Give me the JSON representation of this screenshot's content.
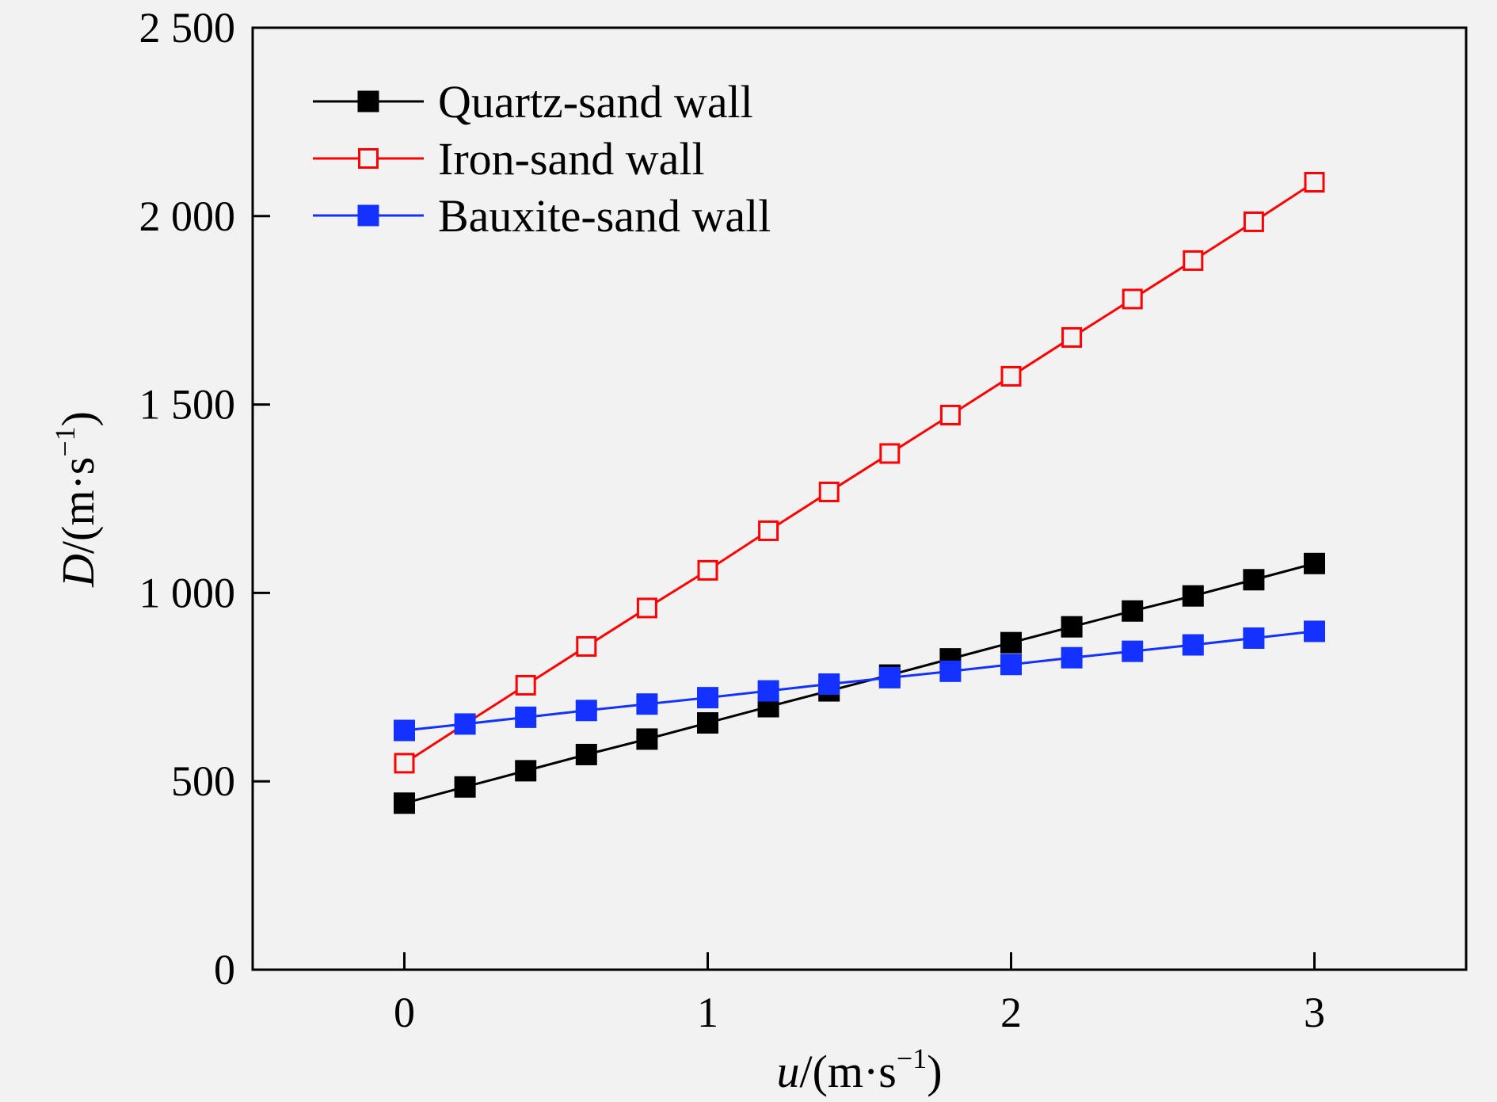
{
  "chart_data": {
    "type": "line",
    "xlabel_var": "u",
    "xlabel_unit": "/(m·s",
    "xlabel_exp": "−1",
    "xlabel_close": ")",
    "ylabel_var": "D",
    "ylabel_unit": "/(m·s",
    "ylabel_exp": "−1",
    "ylabel_close": ")",
    "xlim": [
      -0.5,
      3.5
    ],
    "ylim": [
      0,
      2500
    ],
    "xticks": [
      0,
      1,
      2,
      3
    ],
    "xtick_labels": [
      "0",
      "1",
      "2",
      "3"
    ],
    "yticks": [
      0,
      500,
      1000,
      1500,
      2000,
      2500
    ],
    "ytick_labels": [
      "0",
      "500",
      "1 000",
      "1 500",
      "2 000",
      "2 500"
    ],
    "grid": false,
    "legend_position": "top-left",
    "x": [
      0,
      0.2,
      0.4,
      0.6,
      0.8,
      1.0,
      1.2,
      1.4,
      1.6,
      1.8,
      2.0,
      2.2,
      2.4,
      2.6,
      2.8,
      3.0
    ],
    "series": [
      {
        "name": "Quartz-sand wall",
        "color": "#000000",
        "marker": "filled-square",
        "values": [
          442,
          485,
          528,
          571,
          612,
          655,
          698,
          740,
          782,
          825,
          868,
          910,
          952,
          992,
          1035,
          1078
        ]
      },
      {
        "name": "Iron-sand wall",
        "color": "#ff0000",
        "marker": "hollow-square",
        "values": [
          548,
          652,
          755,
          858,
          960,
          1060,
          1165,
          1268,
          1370,
          1472,
          1575,
          1678,
          1780,
          1882,
          1985,
          2090
        ]
      },
      {
        "name": "Bauxite-sand wall",
        "color": "#1432ff",
        "marker": "filled-square",
        "values": [
          635,
          652,
          670,
          688,
          705,
          722,
          740,
          758,
          775,
          792,
          810,
          828,
          845,
          862,
          880,
          898
        ]
      }
    ]
  }
}
